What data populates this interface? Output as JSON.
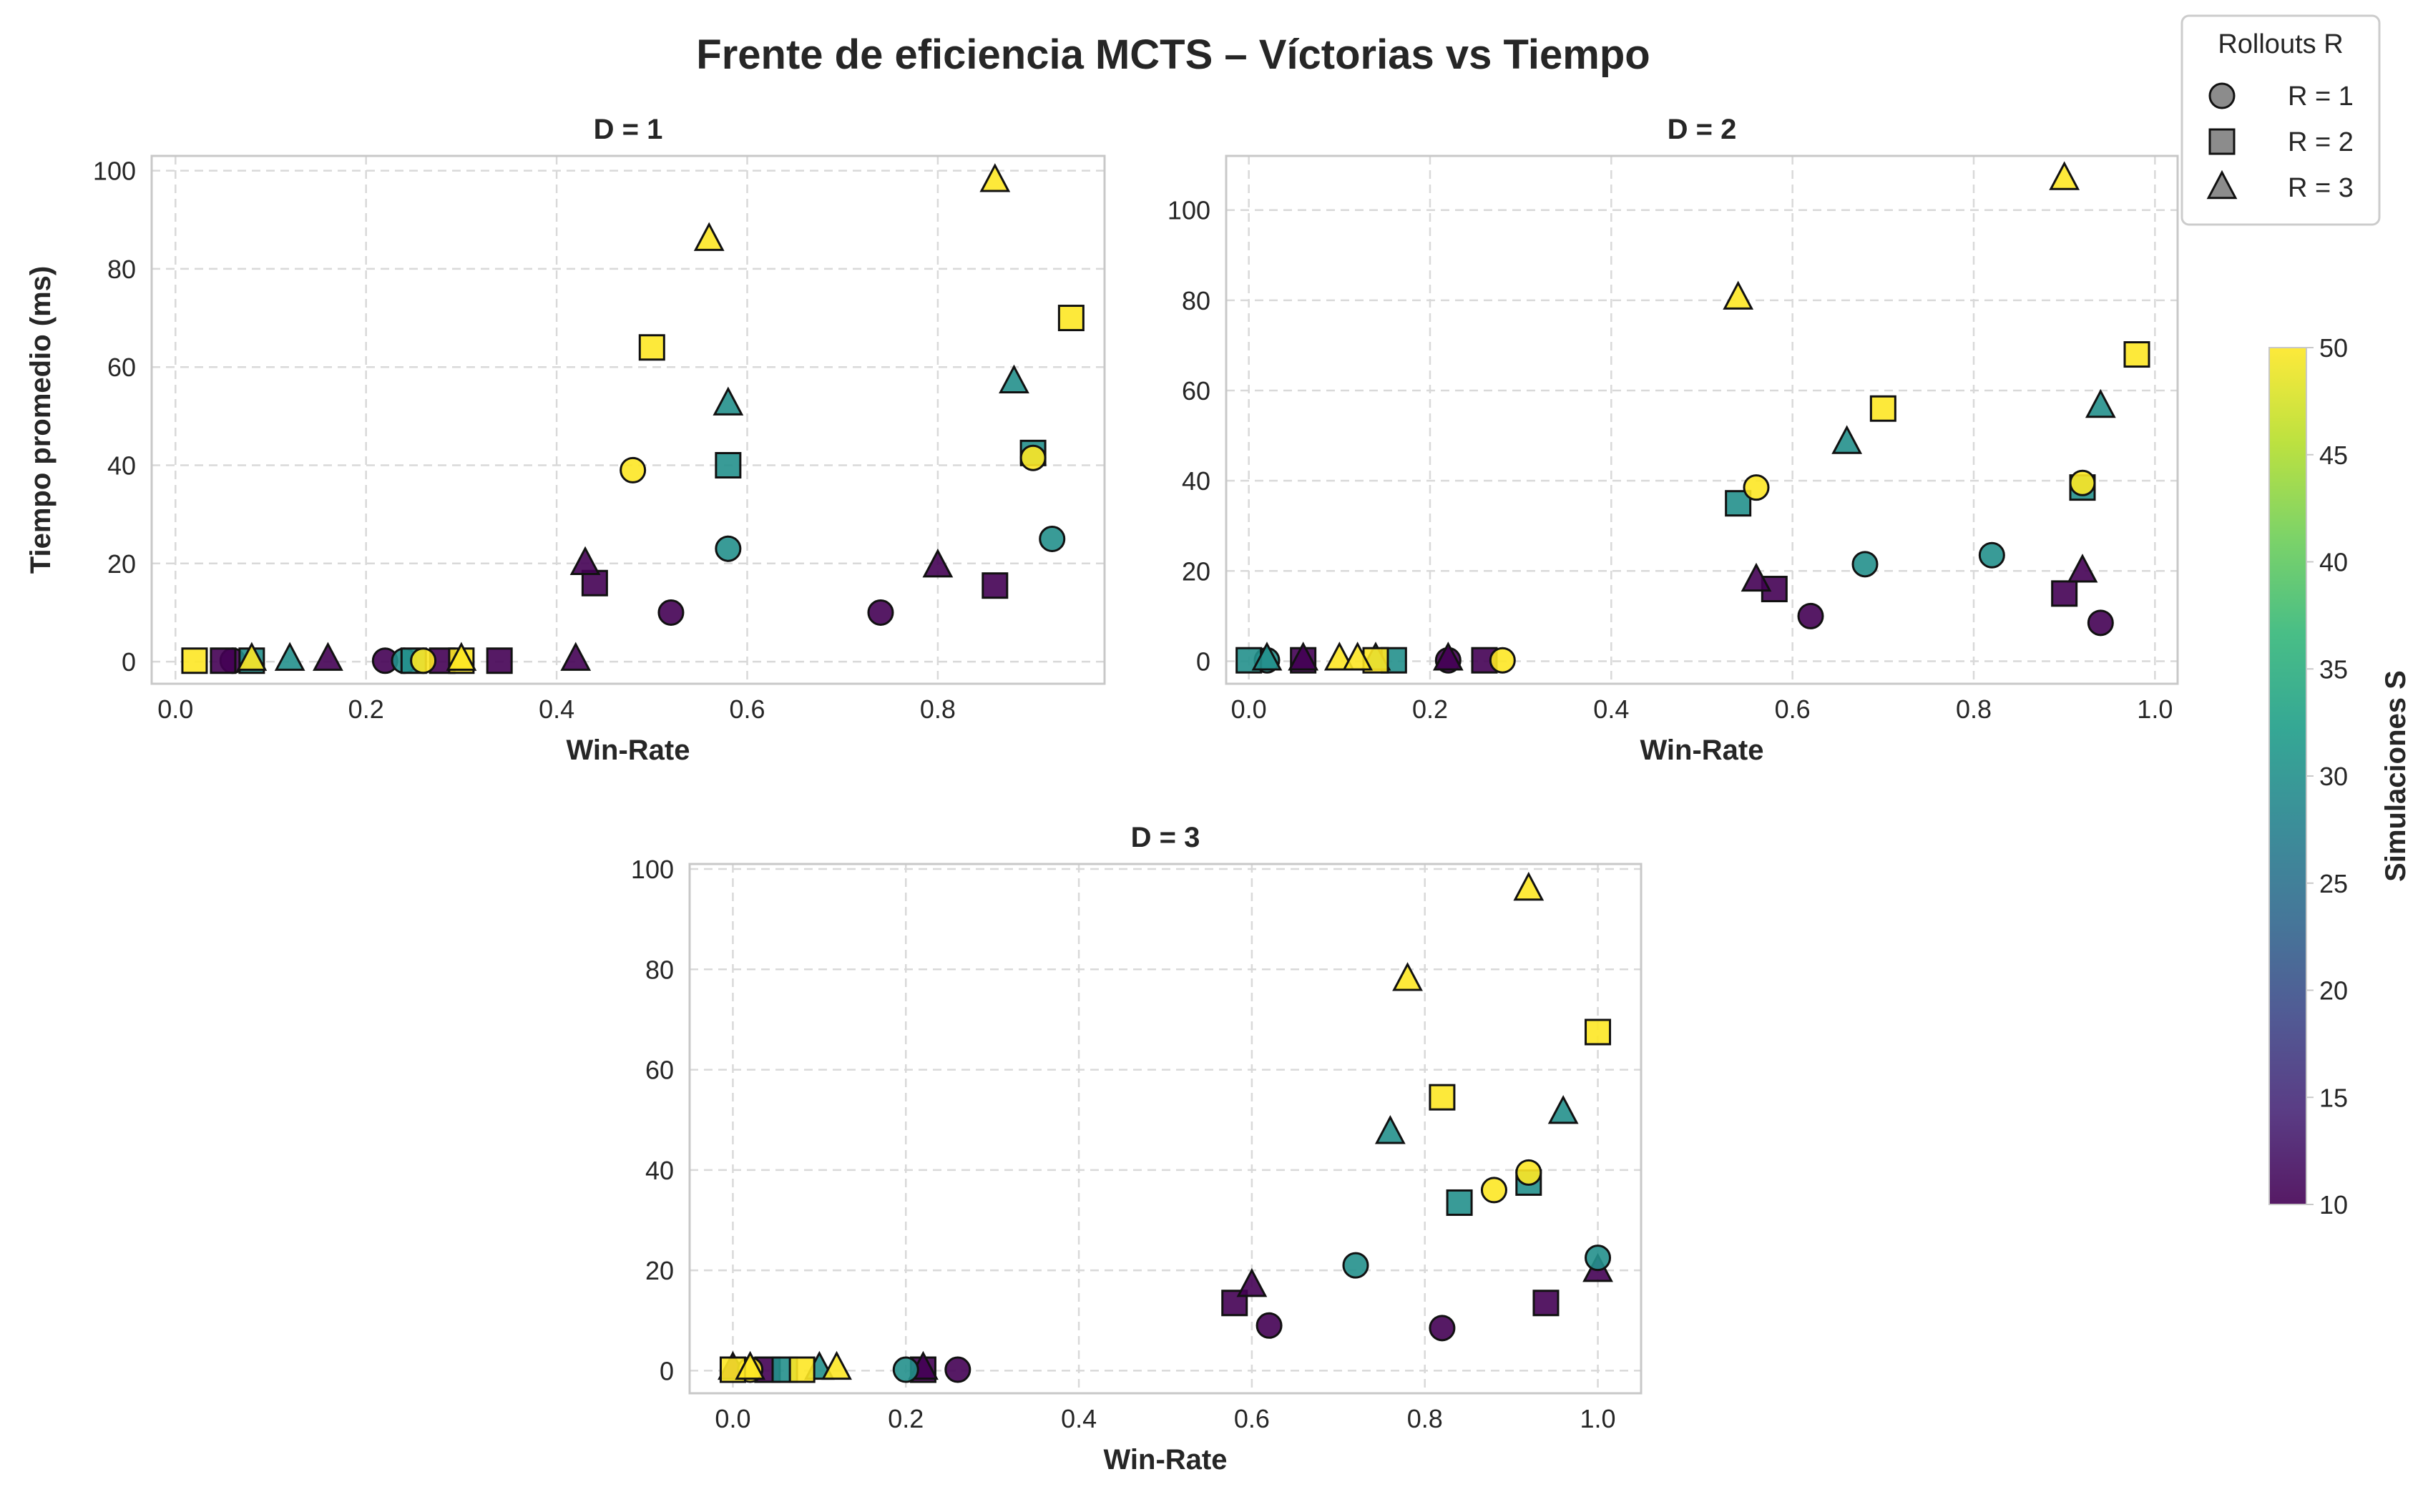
{
  "chart_data": {
    "type": "scatter",
    "title": "Frente de eficiencia MCTS – Víctorias vs Tiempo",
    "encoding": {
      "color": "Simulaciones S",
      "marker": "Rollouts R"
    },
    "colorbar": {
      "label": "Simulaciones S",
      "range": [
        10,
        50
      ],
      "ticks": [
        "10",
        "15",
        "20",
        "25",
        "30",
        "35",
        "40",
        "45",
        "50"
      ],
      "colormap": [
        "#440154",
        "#482878",
        "#3e4989",
        "#31688e",
        "#26828e",
        "#1f9e89",
        "#35b779",
        "#6ece58",
        "#b5de2b",
        "#fde725"
      ]
    },
    "legend": {
      "title": "Rollouts R",
      "placement": "top-right",
      "entries": [
        {
          "label": "R = 1",
          "marker": "circle"
        },
        {
          "label": "R = 2",
          "marker": "square"
        },
        {
          "label": "R = 3",
          "marker": "triangle"
        }
      ]
    },
    "subplots": [
      {
        "title": "D = 1",
        "xlabel": "Win-Rate",
        "ylabel": "Tiempo promedio (ms)",
        "xlim": [
          -0.025,
          0.975
        ],
        "ylim": [
          -4.5,
          103
        ],
        "xticks": [
          "0.0",
          "0.2",
          "0.4",
          "0.6",
          "0.8"
        ],
        "yticks": [
          "0",
          "20",
          "40",
          "60",
          "80",
          "100"
        ],
        "grid": true,
        "points": [
          {
            "x": 0.22,
            "y": 0.2,
            "R": 1,
            "S": 10
          },
          {
            "x": 0.06,
            "y": 0.2,
            "R": 1,
            "S": 10
          },
          {
            "x": 0.52,
            "y": 10,
            "R": 1,
            "S": 10
          },
          {
            "x": 0.74,
            "y": 10,
            "R": 1,
            "S": 10
          },
          {
            "x": 0.24,
            "y": 0.2,
            "R": 1,
            "S": 30
          },
          {
            "x": 0.58,
            "y": 23,
            "R": 1,
            "S": 30
          },
          {
            "x": 0.92,
            "y": 25,
            "R": 1,
            "S": 30
          },
          {
            "x": 0.26,
            "y": 0.2,
            "R": 1,
            "S": 50
          },
          {
            "x": 0.48,
            "y": 39,
            "R": 1,
            "S": 50
          },
          {
            "x": 0.9,
            "y": 41.5,
            "R": 1,
            "S": 50
          },
          {
            "x": 0.05,
            "y": 0.2,
            "R": 2,
            "S": 10
          },
          {
            "x": 0.28,
            "y": 0.2,
            "R": 2,
            "S": 10
          },
          {
            "x": 0.34,
            "y": 0.2,
            "R": 2,
            "S": 10
          },
          {
            "x": 0.44,
            "y": 16,
            "R": 2,
            "S": 10
          },
          {
            "x": 0.86,
            "y": 15.5,
            "R": 2,
            "S": 10
          },
          {
            "x": 0.08,
            "y": 0.2,
            "R": 2,
            "S": 30
          },
          {
            "x": 0.25,
            "y": 0.2,
            "R": 2,
            "S": 30
          },
          {
            "x": 0.58,
            "y": 40,
            "R": 2,
            "S": 30
          },
          {
            "x": 0.9,
            "y": 42.5,
            "R": 2,
            "S": 30
          },
          {
            "x": 0.02,
            "y": 0.2,
            "R": 2,
            "S": 50
          },
          {
            "x": 0.3,
            "y": 0.2,
            "R": 2,
            "S": 50
          },
          {
            "x": 0.5,
            "y": 64,
            "R": 2,
            "S": 50
          },
          {
            "x": 0.94,
            "y": 70,
            "R": 2,
            "S": 50
          },
          {
            "x": 0.16,
            "y": 0.5,
            "R": 3,
            "S": 10
          },
          {
            "x": 0.42,
            "y": 0.5,
            "R": 3,
            "S": 10
          },
          {
            "x": 0.43,
            "y": 20,
            "R": 3,
            "S": 10
          },
          {
            "x": 0.8,
            "y": 19.5,
            "R": 3,
            "S": 10
          },
          {
            "x": 0.12,
            "y": 0.5,
            "R": 3,
            "S": 30
          },
          {
            "x": 0.58,
            "y": 52.5,
            "R": 3,
            "S": 30
          },
          {
            "x": 0.88,
            "y": 57,
            "R": 3,
            "S": 30
          },
          {
            "x": 0.08,
            "y": 0.5,
            "R": 3,
            "S": 50
          },
          {
            "x": 0.3,
            "y": 0.5,
            "R": 3,
            "S": 50
          },
          {
            "x": 0.56,
            "y": 86,
            "R": 3,
            "S": 50
          },
          {
            "x": 0.86,
            "y": 98,
            "R": 3,
            "S": 50
          }
        ]
      },
      {
        "title": "D = 2",
        "xlabel": "Win-Rate",
        "ylabel": "",
        "xlim": [
          -0.025,
          1.025
        ],
        "ylim": [
          -5,
          112
        ],
        "xticks": [
          "0.0",
          "0.2",
          "0.4",
          "0.6",
          "0.8",
          "1.0"
        ],
        "yticks": [
          "0",
          "20",
          "40",
          "60",
          "80",
          "100"
        ],
        "grid": true,
        "points": [
          {
            "x": 0.22,
            "y": 0.2,
            "R": 1,
            "S": 10
          },
          {
            "x": 0.62,
            "y": 10,
            "R": 1,
            "S": 10
          },
          {
            "x": 0.94,
            "y": 8.5,
            "R": 1,
            "S": 10
          },
          {
            "x": 0.02,
            "y": 0.2,
            "R": 1,
            "S": 30
          },
          {
            "x": 0.68,
            "y": 21.5,
            "R": 1,
            "S": 30
          },
          {
            "x": 0.82,
            "y": 23.5,
            "R": 1,
            "S": 30
          },
          {
            "x": 0.28,
            "y": 0.2,
            "R": 1,
            "S": 50
          },
          {
            "x": 0.56,
            "y": 38.5,
            "R": 1,
            "S": 50
          },
          {
            "x": 0.92,
            "y": 39.5,
            "R": 1,
            "S": 50
          },
          {
            "x": 0.06,
            "y": 0.2,
            "R": 2,
            "S": 10
          },
          {
            "x": 0.26,
            "y": 0.2,
            "R": 2,
            "S": 10
          },
          {
            "x": 0.58,
            "y": 16,
            "R": 2,
            "S": 10
          },
          {
            "x": 0.9,
            "y": 15,
            "R": 2,
            "S": 10
          },
          {
            "x": 0.0,
            "y": 0.2,
            "R": 2,
            "S": 30
          },
          {
            "x": 0.16,
            "y": 0.2,
            "R": 2,
            "S": 30
          },
          {
            "x": 0.54,
            "y": 35,
            "R": 2,
            "S": 30
          },
          {
            "x": 0.92,
            "y": 38.5,
            "R": 2,
            "S": 30
          },
          {
            "x": 0.14,
            "y": 0.2,
            "R": 2,
            "S": 50
          },
          {
            "x": 0.7,
            "y": 56,
            "R": 2,
            "S": 50
          },
          {
            "x": 0.98,
            "y": 68,
            "R": 2,
            "S": 50
          },
          {
            "x": 0.06,
            "y": 0.5,
            "R": 3,
            "S": 10
          },
          {
            "x": 0.22,
            "y": 0.5,
            "R": 3,
            "S": 10
          },
          {
            "x": 0.56,
            "y": 18,
            "R": 3,
            "S": 10
          },
          {
            "x": 0.92,
            "y": 20,
            "R": 3,
            "S": 10
          },
          {
            "x": 0.02,
            "y": 0.5,
            "R": 3,
            "S": 30
          },
          {
            "x": 0.14,
            "y": 0.5,
            "R": 3,
            "S": 30
          },
          {
            "x": 0.66,
            "y": 48.5,
            "R": 3,
            "S": 30
          },
          {
            "x": 0.94,
            "y": 56.5,
            "R": 3,
            "S": 30
          },
          {
            "x": 0.1,
            "y": 0.5,
            "R": 3,
            "S": 50
          },
          {
            "x": 0.12,
            "y": 0.5,
            "R": 3,
            "S": 50
          },
          {
            "x": 0.54,
            "y": 80.5,
            "R": 3,
            "S": 50
          },
          {
            "x": 0.9,
            "y": 107,
            "R": 3,
            "S": 50
          }
        ]
      },
      {
        "title": "D = 3",
        "xlabel": "Win-Rate",
        "ylabel": "",
        "xlim": [
          -0.05,
          1.05
        ],
        "ylim": [
          -4.5,
          101
        ],
        "xticks": [
          "0.0",
          "0.2",
          "0.4",
          "0.6",
          "0.8",
          "1.0"
        ],
        "yticks": [
          "0",
          "20",
          "40",
          "60",
          "80",
          "100"
        ],
        "grid": true,
        "points": [
          {
            "x": 0.26,
            "y": 0.2,
            "R": 1,
            "S": 10
          },
          {
            "x": 0.62,
            "y": 9,
            "R": 1,
            "S": 10
          },
          {
            "x": 0.82,
            "y": 8.5,
            "R": 1,
            "S": 10
          },
          {
            "x": 0.2,
            "y": 0.2,
            "R": 1,
            "S": 30
          },
          {
            "x": 0.72,
            "y": 21,
            "R": 1,
            "S": 30
          },
          {
            "x": 1.0,
            "y": 22.5,
            "R": 1,
            "S": 30
          },
          {
            "x": 0.02,
            "y": 0.2,
            "R": 1,
            "S": 50
          },
          {
            "x": 0.88,
            "y": 36,
            "R": 1,
            "S": 50
          },
          {
            "x": 0.92,
            "y": 39.5,
            "R": 1,
            "S": 50
          },
          {
            "x": 0.04,
            "y": 0.2,
            "R": 2,
            "S": 10
          },
          {
            "x": 0.22,
            "y": 0.2,
            "R": 2,
            "S": 10
          },
          {
            "x": 0.58,
            "y": 13.5,
            "R": 2,
            "S": 10
          },
          {
            "x": 0.94,
            "y": 13.5,
            "R": 2,
            "S": 10
          },
          {
            "x": 0.06,
            "y": 0.2,
            "R": 2,
            "S": 30
          },
          {
            "x": 0.84,
            "y": 33.5,
            "R": 2,
            "S": 30
          },
          {
            "x": 0.92,
            "y": 37.5,
            "R": 2,
            "S": 30
          },
          {
            "x": 0.0,
            "y": 0.2,
            "R": 2,
            "S": 50
          },
          {
            "x": 0.08,
            "y": 0.2,
            "R": 2,
            "S": 50
          },
          {
            "x": 0.82,
            "y": 54.5,
            "R": 2,
            "S": 50
          },
          {
            "x": 1.0,
            "y": 67.5,
            "R": 2,
            "S": 50
          },
          {
            "x": 0.0,
            "y": 0.5,
            "R": 3,
            "S": 10
          },
          {
            "x": 0.22,
            "y": 0.5,
            "R": 3,
            "S": 10
          },
          {
            "x": 0.6,
            "y": 17,
            "R": 3,
            "S": 10
          },
          {
            "x": 1.0,
            "y": 20,
            "R": 3,
            "S": 10
          },
          {
            "x": 0.1,
            "y": 0.5,
            "R": 3,
            "S": 30
          },
          {
            "x": 0.76,
            "y": 47.5,
            "R": 3,
            "S": 30
          },
          {
            "x": 0.96,
            "y": 51.5,
            "R": 3,
            "S": 30
          },
          {
            "x": 0.02,
            "y": 0.5,
            "R": 3,
            "S": 50
          },
          {
            "x": 0.12,
            "y": 0.5,
            "R": 3,
            "S": 50
          },
          {
            "x": 0.78,
            "y": 78,
            "R": 3,
            "S": 50
          },
          {
            "x": 0.92,
            "y": 96,
            "R": 3,
            "S": 50
          }
        ]
      }
    ]
  }
}
